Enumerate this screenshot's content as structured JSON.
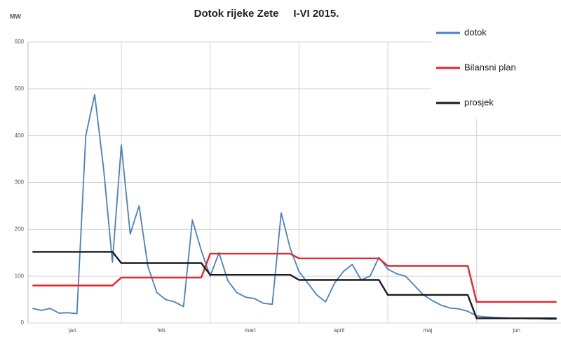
{
  "chart_data": {
    "type": "line",
    "title": "Dotok rijeke Zete     I-VI 2015.",
    "y_label": "MW",
    "categories": [
      null,
      null,
      null,
      null,
      null,
      "jan",
      null,
      null,
      null,
      null,
      null,
      null,
      null,
      null,
      null,
      "feb",
      null,
      null,
      null,
      null,
      null,
      null,
      null,
      null,
      null,
      "mart",
      null,
      null,
      null,
      null,
      null,
      null,
      null,
      null,
      null,
      "april",
      null,
      null,
      null,
      null,
      null,
      null,
      null,
      null,
      null,
      "maj",
      null,
      null,
      null,
      null,
      null,
      null,
      null,
      null,
      null,
      "jun",
      null,
      null,
      null,
      null
    ],
    "series": [
      {
        "name": "dotok",
        "color": "#4a7fc1",
        "values": [
          31,
          27,
          31,
          21,
          22,
          20,
          400,
          488,
          330,
          130,
          380,
          190,
          250,
          120,
          65,
          50,
          45,
          35,
          220,
          155,
          100,
          150,
          90,
          65,
          55,
          52,
          42,
          40,
          235,
          160,
          110,
          85,
          60,
          45,
          85,
          110,
          125,
          92,
          100,
          140,
          115,
          105,
          100,
          80,
          60,
          48,
          38,
          32,
          30,
          25,
          15,
          13,
          12,
          11,
          10,
          10,
          9,
          9,
          8,
          8
        ]
      },
      {
        "name": "Bilansni plan",
        "color": "#e8262b",
        "values": [
          80,
          80,
          80,
          80,
          80,
          80,
          80,
          80,
          80,
          80,
          97,
          97,
          97,
          97,
          97,
          97,
          97,
          97,
          97,
          97,
          148,
          148,
          148,
          148,
          148,
          148,
          148,
          148,
          148,
          148,
          138,
          138,
          138,
          138,
          138,
          138,
          138,
          138,
          138,
          138,
          122,
          122,
          122,
          122,
          122,
          122,
          122,
          122,
          122,
          122,
          45,
          45,
          45,
          45,
          45,
          45,
          45,
          45,
          45,
          45
        ]
      },
      {
        "name": "prosjek",
        "color": "#1a1a1a",
        "values": [
          152,
          152,
          152,
          152,
          152,
          152,
          152,
          152,
          152,
          152,
          128,
          128,
          128,
          128,
          128,
          128,
          128,
          128,
          128,
          128,
          103,
          103,
          103,
          103,
          103,
          103,
          103,
          103,
          103,
          103,
          92,
          92,
          92,
          92,
          92,
          92,
          92,
          92,
          92,
          92,
          60,
          60,
          60,
          60,
          60,
          60,
          60,
          60,
          60,
          60,
          10,
          10,
          10,
          10,
          10,
          10,
          10,
          10,
          10,
          10
        ]
      }
    ],
    "ylim": [
      0,
      600
    ],
    "yticks": [
      0,
      100,
      200,
      300,
      400,
      500,
      600
    ],
    "grid": true,
    "legend": "top-right"
  }
}
